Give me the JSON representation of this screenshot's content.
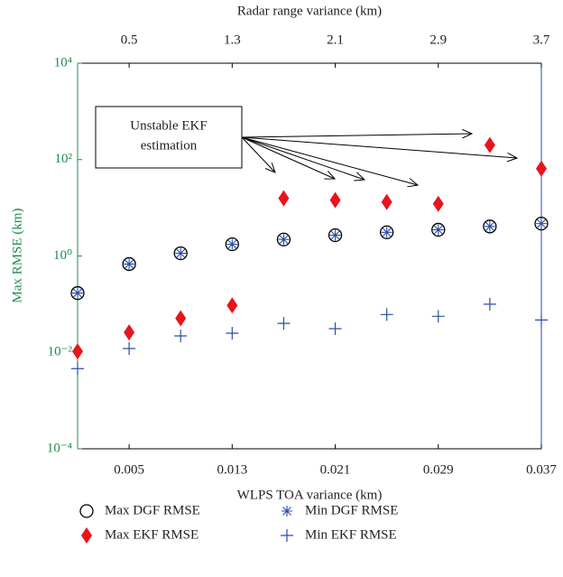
{
  "chart_data": {
    "type": "scatter",
    "xlabel": "WLPS TOA variance (km)",
    "x2label": "Radar range variance (km)",
    "ylabel": "Max RMSE (km)",
    "annotation_lines": [
      "Unstable EKF",
      "estimation"
    ],
    "x": [
      0.001,
      0.005,
      0.009,
      0.013,
      0.017,
      0.021,
      0.025,
      0.029,
      0.033,
      0.037
    ],
    "xlim": [
      0.001,
      0.037
    ],
    "xticks": [
      0.005,
      0.013,
      0.021,
      0.029,
      0.037
    ],
    "x2lim": [
      0.1,
      3.7
    ],
    "x2ticks": [
      0.5,
      1.3,
      2.1,
      2.9,
      3.7
    ],
    "ylog": true,
    "ylim": [
      0.0001,
      10000
    ],
    "yticks": [
      {
        "value": 0.0001,
        "label": "10⁻⁴"
      },
      {
        "value": 0.01,
        "label": "10⁻²"
      },
      {
        "value": 1,
        "label": "10⁰"
      },
      {
        "value": 100,
        "label": "10²"
      },
      {
        "value": 10000,
        "label": "10⁴"
      }
    ],
    "y_axis_color": "#1f8a4c",
    "y2_axis_color": "#2a4fa8",
    "series": [
      {
        "name": "Max DGF RMSE",
        "marker": "circle",
        "color": "#000000",
        "values": [
          0.17,
          0.68,
          1.14,
          1.75,
          2.2,
          2.7,
          3.1,
          3.5,
          4.1,
          4.7
        ]
      },
      {
        "name": "Min DGF RMSE",
        "marker": "star",
        "color": "#2a4fa8",
        "values": [
          0.17,
          0.68,
          1.14,
          1.75,
          2.2,
          2.7,
          3.1,
          3.5,
          4.1,
          4.7
        ]
      },
      {
        "name": "Max EKF RMSE",
        "marker": "diamond",
        "color": "#e8141c",
        "values": [
          0.0105,
          0.026,
          0.051,
          0.094,
          15.7,
          14.4,
          13.2,
          12.1,
          200,
          65
        ]
      },
      {
        "name": "Min EKF RMSE",
        "marker": "plus",
        "color": "#2a4fa8",
        "values": [
          0.0046,
          0.012,
          0.022,
          0.025,
          0.04,
          0.031,
          0.061,
          0.056,
          0.1,
          0.047
        ]
      }
    ],
    "legend_order": [
      0,
      2,
      1,
      3
    ]
  }
}
